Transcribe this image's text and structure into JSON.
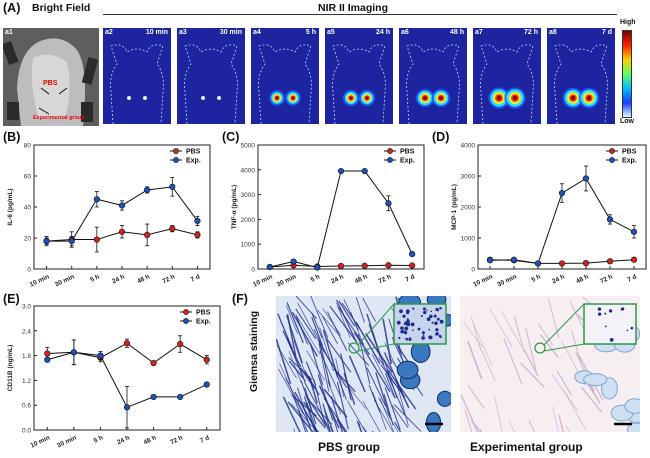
{
  "panel_A": {
    "letter": "(A)",
    "bright_field_title": "Bright Field",
    "nir_title": "NIR II Imaging",
    "a1_label": "a1",
    "a1_pbs": "PBS",
    "a1_exp": "Experimental group",
    "tiles": [
      {
        "id": "a2",
        "time": "10 min",
        "intensity": 0.15
      },
      {
        "id": "a3",
        "time": "30 min",
        "intensity": 0.2
      },
      {
        "id": "a4",
        "time": "5 h",
        "intensity": 0.55
      },
      {
        "id": "a5",
        "time": "24 h",
        "intensity": 0.6
      },
      {
        "id": "a6",
        "time": "48 h",
        "intensity": 0.75
      },
      {
        "id": "a7",
        "time": "72 h",
        "intensity": 0.95
      },
      {
        "id": "a8",
        "time": "7 d",
        "intensity": 0.9
      }
    ],
    "colorbar_high": "High",
    "colorbar_low": "Low"
  },
  "chart_data": [
    {
      "id": "B",
      "letter": "(B)",
      "type": "line",
      "ylabel": "IL-6 (pg/mL)",
      "categories": [
        "10 min",
        "30 min",
        "5 h",
        "24 h",
        "48 h",
        "72 h",
        "7 d"
      ],
      "ylim": [
        0,
        80
      ],
      "yticks": [
        "0",
        "20",
        "40",
        "60",
        "80"
      ],
      "legend": "top-right",
      "series": [
        {
          "name": "PBS",
          "color": "#d42020",
          "values": [
            18,
            19,
            19,
            24,
            22,
            26,
            22
          ],
          "err": [
            3,
            5,
            8,
            4,
            7,
            2,
            2
          ]
        },
        {
          "name": "Exp.",
          "color": "#2050c0",
          "values": [
            18,
            18,
            45,
            41,
            51,
            53,
            31
          ],
          "err": [
            2,
            3,
            5,
            3,
            2,
            6,
            3
          ]
        }
      ]
    },
    {
      "id": "C",
      "letter": "(C)",
      "type": "line",
      "ylabel": "TNF-α (pg/mL)",
      "categories": [
        "10 min",
        "30 min",
        "5 h",
        "24 h",
        "48 h",
        "72 h",
        "7 d"
      ],
      "ylim": [
        0,
        5000
      ],
      "yticks": [
        "0",
        "1000",
        "2000",
        "3000",
        "4000",
        "5000"
      ],
      "legend": "top-right",
      "series": [
        {
          "name": "PBS",
          "color": "#d42020",
          "values": [
            80,
            150,
            100,
            120,
            130,
            150,
            140
          ],
          "err": [
            20,
            30,
            20,
            20,
            20,
            20,
            20
          ]
        },
        {
          "name": "Exp.",
          "color": "#2050c0",
          "values": [
            80,
            300,
            60,
            3950,
            3950,
            2650,
            600
          ],
          "err": [
            20,
            60,
            20,
            30,
            30,
            300,
            40
          ]
        }
      ]
    },
    {
      "id": "D",
      "letter": "(D)",
      "type": "line",
      "ylabel": "MCP-1 (pg/mL)",
      "categories": [
        "10 min",
        "30 min",
        "5 h",
        "24 h",
        "48 h",
        "72 h",
        "7 d"
      ],
      "ylim": [
        0,
        4000
      ],
      "yticks": [
        "0",
        "1000",
        "2000",
        "3000",
        "4000"
      ],
      "legend": "top-right",
      "series": [
        {
          "name": "PBS",
          "color": "#d42020",
          "values": [
            300,
            280,
            180,
            180,
            190,
            250,
            300
          ],
          "err": [
            50,
            50,
            30,
            30,
            30,
            30,
            30
          ]
        },
        {
          "name": "Exp.",
          "color": "#2050c0",
          "values": [
            280,
            300,
            180,
            2450,
            2920,
            1600,
            1200
          ],
          "err": [
            50,
            60,
            30,
            300,
            400,
            150,
            200
          ]
        }
      ]
    },
    {
      "id": "E",
      "letter": "(E)",
      "type": "line",
      "ylabel": "CD11B (ng/mL)",
      "categories": [
        "10 min",
        "30 min",
        "5 h",
        "24 h",
        "48 h",
        "72 h",
        "7 d"
      ],
      "ylim": [
        0,
        3.0
      ],
      "yticks": [
        "0.0",
        "0.6",
        "1.2",
        "1.8",
        "2.4",
        "3.0"
      ],
      "legend": "top-right",
      "series": [
        {
          "name": "PBS",
          "color": "#d42020",
          "values": [
            1.85,
            1.88,
            1.75,
            2.1,
            1.62,
            2.08,
            1.7
          ],
          "err": [
            0.15,
            0.3,
            0.1,
            0.1,
            0.05,
            0.2,
            0.1
          ]
        },
        {
          "name": "Exp.",
          "color": "#2050c0",
          "values": [
            1.7,
            1.88,
            1.8,
            0.55,
            0.8,
            0.8,
            1.1
          ],
          "err": [
            0.05,
            0.3,
            0.1,
            0.5,
            0.05,
            0.05,
            0.05
          ]
        }
      ]
    }
  ],
  "panel_F": {
    "letter": "(F)",
    "side_label": "Giemsa staining",
    "left_label": "PBS group",
    "right_label": "Experimental group"
  },
  "colors": {
    "pbs": "#d42020",
    "exp": "#2050c0",
    "nir_bg": "#1c24a0",
    "inset_border": "#2a9a48"
  }
}
